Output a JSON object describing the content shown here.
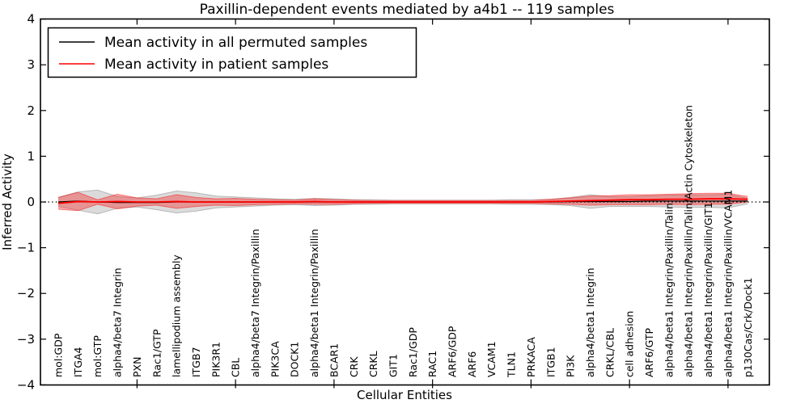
{
  "figure": {
    "title": "Paxillin-dependent events mediated by a4b1 -- 119 samples",
    "xlabel": "Cellular Entities",
    "ylabel": "Inferred Activity"
  },
  "legend": {
    "position": "upper left",
    "entries": [
      {
        "label": "Mean activity in all permuted samples",
        "color": "#000000"
      },
      {
        "label": "Mean activity in patient samples",
        "color": "#ff0000"
      }
    ]
  },
  "colors": {
    "patient_line": "#ff0000",
    "permuted_line": "#000000",
    "patient_band_fill": "rgba(255,0,0,0.32)",
    "patient_band_edge": "rgba(255,0,0,0.45)",
    "permuted_band_fill": "rgba(0,0,0,0.14)",
    "permuted_band_edge": "rgba(0,0,0,0.22)",
    "zero_line": "#000000",
    "axes_edge": "#000000",
    "background": "#ffffff"
  },
  "chart_data": {
    "type": "line",
    "title": "Paxillin-dependent events mediated by a4b1 -- 119 samples",
    "xlabel": "Cellular Entities",
    "ylabel": "Inferred Activity",
    "ylim": [
      -4,
      4
    ],
    "yticks": [
      -4,
      -3,
      -2,
      -1,
      0,
      1,
      2,
      3,
      4
    ],
    "xtick_positions": [
      5,
      10,
      15,
      20,
      25,
      30,
      35
    ],
    "grid": false,
    "legend_position": "upper left",
    "zero_line": {
      "y": 0,
      "style": "dotted",
      "color": "#000000"
    },
    "categories": [
      "mol:GDP",
      "ITGA4",
      "mol:GTP",
      "alpha4/beta7 Integrin",
      "PXN",
      "Rac1/GTP",
      "lamellipodium assembly",
      "ITGB7",
      "PIK3R1",
      "CBL",
      "alpha4/beta7 Integrin/Paxillin",
      "PIK3CA",
      "DOCK1",
      "alpha4/beta1 Integrin/Paxillin",
      "BCAR1",
      "CRK",
      "CRKL",
      "GIT1",
      "Rac1/GDP",
      "RAC1",
      "ARF6/GDP",
      "ARF6",
      "VCAM1",
      "TLN1",
      "PRKACA",
      "ITGB1",
      "PI3K",
      "alpha4/beta1 Integrin",
      "CRKL/CBL",
      "cell adhesion",
      "ARF6/GTP",
      "alpha4/beta1 Integrin/Paxillin/Talin",
      "alpha4/beta1 Integrin/Paxillin/Talin/Actin Cytoskeleton",
      "alpha4/beta1 Integrin/Paxillin/GIT1",
      "alpha4/beta1 Integrin/Paxillin/VCAM1",
      "p130Cas/Crk/Dock1"
    ],
    "series": [
      {
        "name": "Mean activity in all permuted samples",
        "color": "#000000",
        "values": [
          0.0,
          0.02,
          0.0,
          -0.01,
          -0.01,
          -0.01,
          0.0,
          0.0,
          0.0,
          0.0,
          0.0,
          0.0,
          0.0,
          0.0,
          0.0,
          0.0,
          0.0,
          0.0,
          0.0,
          0.0,
          0.0,
          0.0,
          0.0,
          0.0,
          0.0,
          0.0,
          0.01,
          0.01,
          0.01,
          0.01,
          0.02,
          0.02,
          0.02,
          0.02,
          0.02,
          0.02
        ],
        "band_half_width_std": [
          0.1,
          0.2,
          0.26,
          0.13,
          0.1,
          0.16,
          0.24,
          0.2,
          0.13,
          0.11,
          0.09,
          0.07,
          0.06,
          0.08,
          0.07,
          0.05,
          0.05,
          0.04,
          0.04,
          0.04,
          0.04,
          0.04,
          0.04,
          0.05,
          0.05,
          0.06,
          0.09,
          0.15,
          0.11,
          0.11,
          0.12,
          0.13,
          0.14,
          0.14,
          0.15,
          0.06
        ]
      },
      {
        "name": "Mean activity in patient samples",
        "color": "#ff0000",
        "values": [
          -0.03,
          0.01,
          0.0,
          0.01,
          0.0,
          0.0,
          0.01,
          0.0,
          0.0,
          0.0,
          0.0,
          0.0,
          0.0,
          0.01,
          0.0,
          0.0,
          0.0,
          0.0,
          0.0,
          0.0,
          0.0,
          0.0,
          0.0,
          0.0,
          0.0,
          0.01,
          0.02,
          0.03,
          0.04,
          0.05,
          0.05,
          0.06,
          0.06,
          0.07,
          0.07,
          0.06
        ],
        "band_half_width_std": [
          0.13,
          0.2,
          0.05,
          0.16,
          0.09,
          0.07,
          0.15,
          0.1,
          0.07,
          0.08,
          0.06,
          0.05,
          0.04,
          0.06,
          0.05,
          0.04,
          0.03,
          0.03,
          0.03,
          0.03,
          0.03,
          0.03,
          0.03,
          0.03,
          0.03,
          0.05,
          0.07,
          0.1,
          0.1,
          0.11,
          0.11,
          0.11,
          0.12,
          0.12,
          0.12,
          0.06
        ]
      }
    ]
  }
}
